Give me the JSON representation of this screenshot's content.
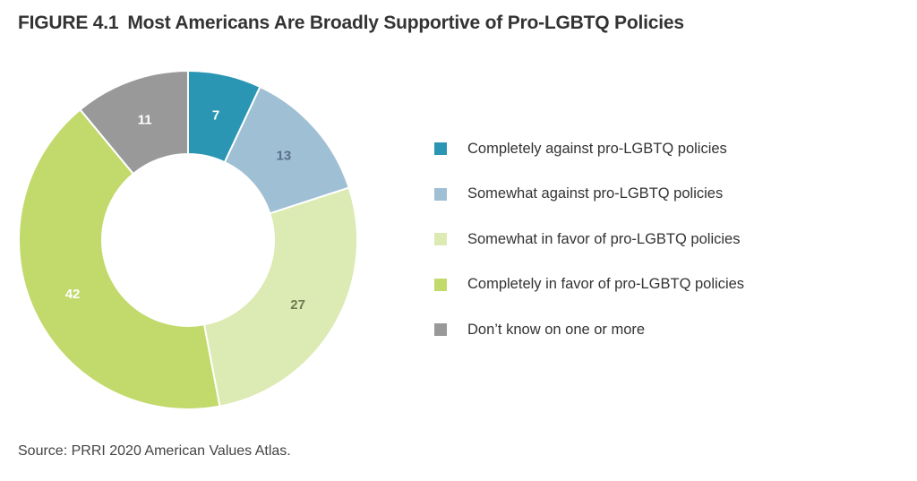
{
  "title": {
    "figure_number": "FIGURE 4.1",
    "text": "Most Americans Are Broadly Supportive of Pro-LGBTQ Policies"
  },
  "source": "Source: PRRI 2020 American Values Atlas.",
  "chart_data": {
    "type": "pie",
    "donut": true,
    "start": "12 o'clock, clockwise",
    "legend_placement": "right",
    "slices": [
      {
        "label": "Completely against pro-LGBTQ policies",
        "value": 7,
        "value_label": "7",
        "color": "#2b96b3",
        "label_color": "#ffffff"
      },
      {
        "label": "Somewhat against pro-LGBTQ policies",
        "value": 13,
        "value_label": "13",
        "color": "#9fbfd4",
        "label_color": "#59708a"
      },
      {
        "label": "Somewhat in favor of pro-LGBTQ policies",
        "value": 27,
        "value_label": "27",
        "color": "#dceab3",
        "label_color": "#6f7a52"
      },
      {
        "label": "Completely in favor of pro-LGBTQ policies",
        "value": 42,
        "value_label": "42",
        "color": "#c2d96b",
        "label_color": "#ffffff"
      },
      {
        "label": "Don’t know on one or more",
        "value": 11,
        "value_label": "11",
        "color": "#999999",
        "label_color": "#ffffff"
      }
    ]
  }
}
